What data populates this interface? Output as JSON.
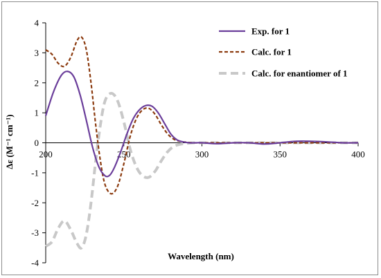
{
  "chart_data": {
    "type": "line",
    "title": "",
    "xlabel": "Wavelength (nm)",
    "ylabel": "Δε (M⁻¹ cm⁻¹)",
    "xlim": [
      200,
      400
    ],
    "ylim": [
      -4,
      4
    ],
    "xticks": [
      200,
      250,
      300,
      350,
      400
    ],
    "yticks": [
      -4,
      -3,
      -2,
      -1,
      0,
      1,
      2,
      3,
      4
    ],
    "grid": false,
    "legend_position": "top-right",
    "series": [
      {
        "name": "Exp. for 1",
        "color": "#6a3d9a",
        "style": "solid",
        "x": [
          200,
          205,
          210,
          214,
          218,
          222,
          226,
          230,
          234,
          238,
          241,
          244,
          248,
          252,
          256,
          260,
          264,
          268,
          272,
          276,
          280,
          284,
          288,
          292,
          296,
          300,
          310,
          320,
          330,
          340,
          350,
          360,
          370,
          380,
          390,
          400
        ],
        "y": [
          0.9,
          1.7,
          2.25,
          2.38,
          2.2,
          1.6,
          0.75,
          -0.15,
          -0.8,
          -1.1,
          -1.08,
          -0.82,
          -0.3,
          0.3,
          0.8,
          1.1,
          1.24,
          1.22,
          1.0,
          0.65,
          0.3,
          0.1,
          0.03,
          0.0,
          0.0,
          0.0,
          -0.03,
          0.0,
          0.0,
          -0.04,
          0.0,
          0.05,
          0.05,
          0.03,
          0.0,
          0.0
        ]
      },
      {
        "name": "Calc. for 1",
        "color": "#8b3a0e",
        "style": "short-dash",
        "x": [
          200,
          204,
          208,
          212,
          216,
          220,
          223,
          226,
          229,
          232,
          235,
          238,
          242,
          246,
          250,
          254,
          258,
          262,
          266,
          270,
          274,
          278,
          282,
          286,
          290,
          295,
          300,
          320,
          340,
          360,
          380,
          400
        ],
        "y": [
          3.1,
          2.95,
          2.65,
          2.55,
          2.85,
          3.4,
          3.52,
          3.1,
          2.0,
          0.6,
          -0.6,
          -1.4,
          -1.7,
          -1.45,
          -0.7,
          0.2,
          0.8,
          1.1,
          1.15,
          0.95,
          0.6,
          0.3,
          0.12,
          0.05,
          0.02,
          0.0,
          0.0,
          0.0,
          0.0,
          0.0,
          0.0,
          0.0
        ]
      },
      {
        "name": "Calc. for enantiomer of 1",
        "color": "#c8c8c8",
        "style": "long-dash",
        "x": [
          200,
          204,
          208,
          212,
          216,
          220,
          223,
          226,
          229,
          232,
          235,
          238,
          242,
          246,
          250,
          254,
          258,
          262,
          266,
          270,
          274,
          278,
          282,
          286,
          290,
          295,
          300,
          320,
          340,
          360,
          380,
          400
        ],
        "y": [
          -3.45,
          -3.3,
          -2.85,
          -2.6,
          -2.9,
          -3.35,
          -3.5,
          -3.05,
          -2.0,
          -0.6,
          0.6,
          1.4,
          1.65,
          1.4,
          0.7,
          -0.2,
          -0.8,
          -1.1,
          -1.15,
          -0.95,
          -0.6,
          -0.3,
          -0.12,
          -0.05,
          -0.02,
          0.0,
          0.0,
          0.0,
          0.0,
          0.0,
          0.0,
          0.0
        ]
      }
    ]
  }
}
